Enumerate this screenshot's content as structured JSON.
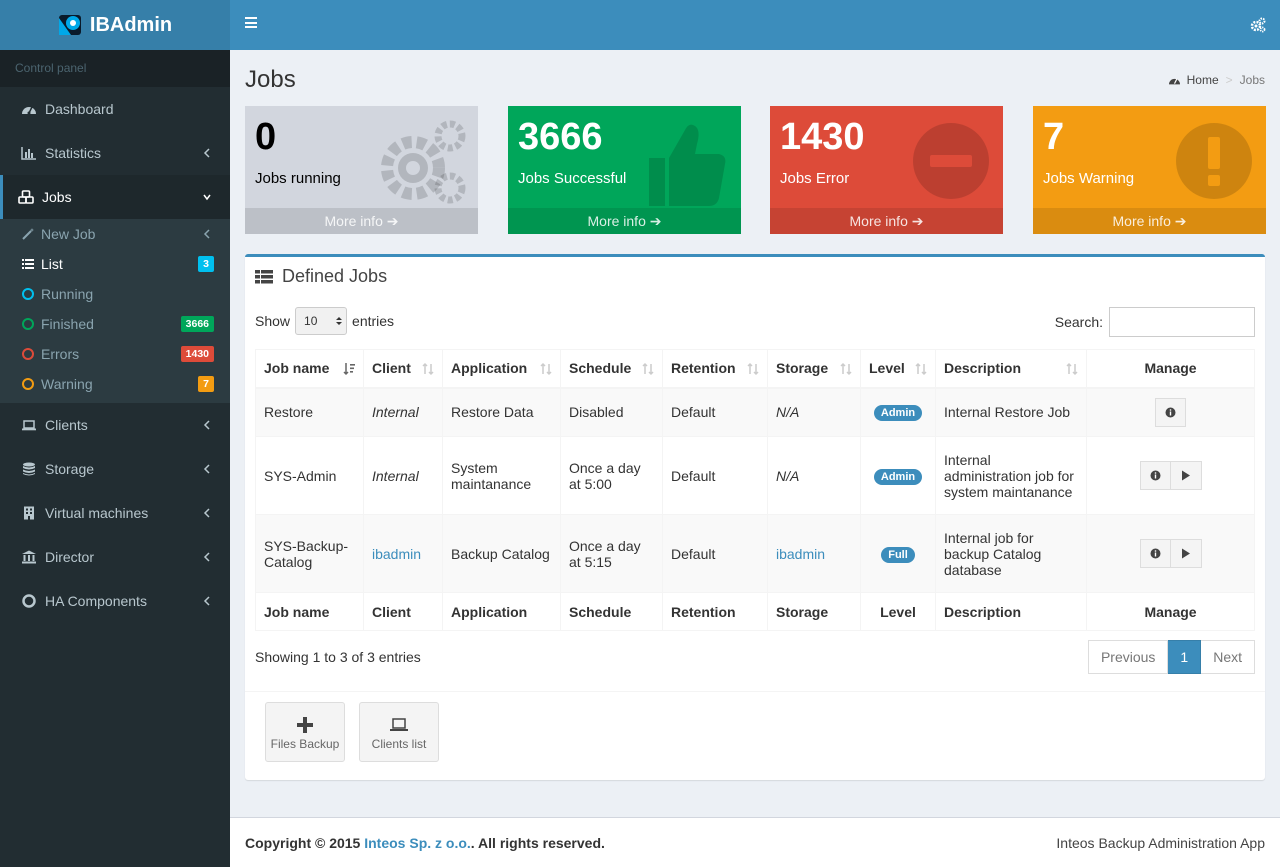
{
  "app": {
    "name": "IBAdmin"
  },
  "sidebar": {
    "header": "Control panel",
    "items": [
      {
        "label": "Dashboard",
        "icon": "dashboard-icon"
      },
      {
        "label": "Statistics",
        "icon": "bar-chart-icon"
      },
      {
        "label": "Jobs",
        "icon": "cubes-icon"
      },
      {
        "label": "Clients",
        "icon": "laptop-icon"
      },
      {
        "label": "Storage",
        "icon": "database-icon"
      },
      {
        "label": "Virtual machines",
        "icon": "building-icon"
      },
      {
        "label": "Director",
        "icon": "bank-icon"
      },
      {
        "label": "HA Components",
        "icon": "life-ring-icon"
      }
    ],
    "jobs_submenu": [
      {
        "label": "New Job",
        "icon": "magic-wand-icon"
      },
      {
        "label": "List",
        "icon": "list-icon",
        "badge": "3",
        "badge_color": "#00c0ef"
      },
      {
        "label": "Running",
        "icon": "circle-icon",
        "ring_color": "#00c0ef"
      },
      {
        "label": "Finished",
        "icon": "circle-icon",
        "badge": "3666",
        "badge_color": "#00a65a",
        "ring_color": "#00a65a"
      },
      {
        "label": "Errors",
        "icon": "circle-icon",
        "badge": "1430",
        "badge_color": "#dd4b39",
        "ring_color": "#dd4b39"
      },
      {
        "label": "Warning",
        "icon": "circle-icon",
        "badge": "7",
        "badge_color": "#f39c12",
        "ring_color": "#f39c12"
      }
    ]
  },
  "page": {
    "title": "Jobs",
    "breadcrumb": {
      "home": "Home",
      "current": "Jobs"
    }
  },
  "tiles": [
    {
      "value": "0",
      "label": "Jobs running",
      "more": "More info",
      "color": "#d2d6de",
      "icon": "gears-icon"
    },
    {
      "value": "3666",
      "label": "Jobs Successful",
      "more": "More info",
      "color": "#00a65a",
      "icon": "thumbs-up-icon"
    },
    {
      "value": "1430",
      "label": "Jobs Error",
      "more": "More info",
      "color": "#dd4b39",
      "icon": "minus-circle-icon"
    },
    {
      "value": "7",
      "label": "Jobs Warning",
      "more": "More info",
      "color": "#f39c12",
      "icon": "exclamation-circle-icon"
    }
  ],
  "panel": {
    "title": "Defined Jobs",
    "show_label": "Show",
    "entries_value": "10",
    "entries_label": "entries",
    "search_label": "Search:",
    "columns": [
      "Job name",
      "Client",
      "Application",
      "Schedule",
      "Retention",
      "Storage",
      "Level",
      "Description",
      "Manage"
    ],
    "rows": [
      {
        "job": "Restore",
        "client": "Internal",
        "application": "Restore Data",
        "schedule": "Disabled",
        "retention": "Default",
        "storage": "N/A",
        "level": "Admin",
        "description": "Internal Restore Job"
      },
      {
        "job": "SYS-Admin",
        "client": "Internal",
        "application": "System maintanance",
        "schedule": "Once a day at 5:00",
        "retention": "Default",
        "storage": "N/A",
        "level": "Admin",
        "description": "Internal administration job for system maintanance"
      },
      {
        "job": "SYS-Backup-Catalog",
        "client": "ibadmin",
        "application": "Backup Catalog",
        "schedule": "Once a day at 5:15",
        "retention": "Default",
        "storage": "ibadmin",
        "level": "Full",
        "description": "Internal job for backup Catalog database"
      }
    ],
    "info": "Showing 1 to 3 of 3 entries",
    "pager": {
      "prev": "Previous",
      "page": "1",
      "next": "Next"
    },
    "actions": [
      {
        "label": "Files Backup",
        "icon": "plus-icon"
      },
      {
        "label": "Clients list",
        "icon": "laptop-icon"
      }
    ]
  },
  "footer": {
    "copyright_prefix": "Copyright © 2015 ",
    "company": "Inteos Sp. z o.o.",
    "copyright_suffix": ". All rights reserved.",
    "right": "Inteos Backup Administration App"
  }
}
